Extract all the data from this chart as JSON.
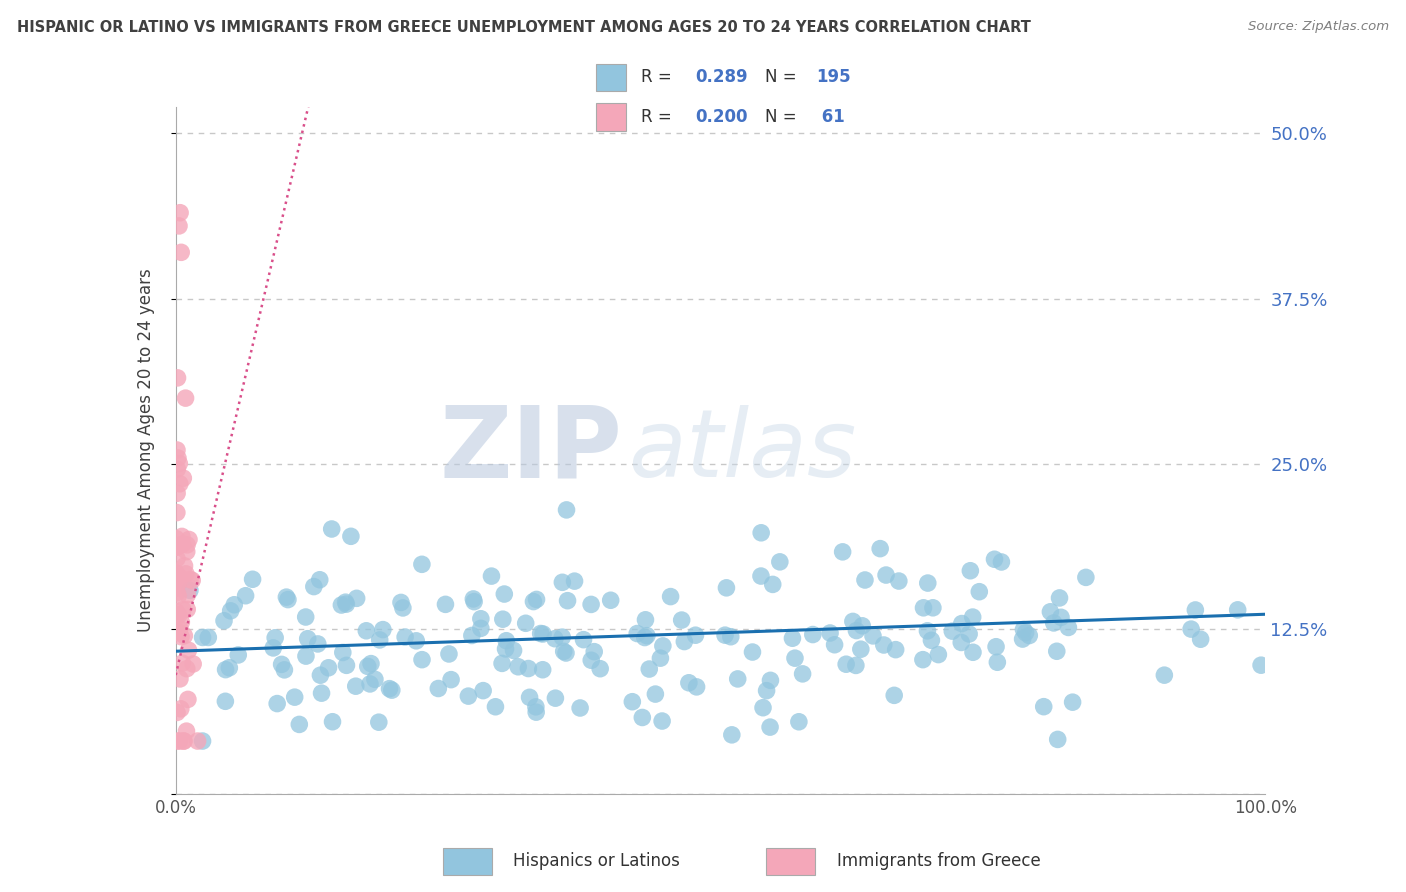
{
  "title": "HISPANIC OR LATINO VS IMMIGRANTS FROM GREECE UNEMPLOYMENT AMONG AGES 20 TO 24 YEARS CORRELATION CHART",
  "source": "Source: ZipAtlas.com",
  "ylabel": "Unemployment Among Ages 20 to 24 years",
  "xlim": [
    0,
    1.0
  ],
  "ylim": [
    0.0,
    0.52
  ],
  "yticks": [
    0.0,
    0.125,
    0.25,
    0.375,
    0.5
  ],
  "yticklabels_right": [
    "",
    "12.5%",
    "25.0%",
    "37.5%",
    "50.0%"
  ],
  "blue_color": "#92c5de",
  "pink_color": "#f4a7b9",
  "blue_line_color": "#1a6faf",
  "pink_line_color": "#d94f8a",
  "R_blue": 0.289,
  "N_blue": 195,
  "R_pink": 0.2,
  "N_pink": 61,
  "legend_label_blue": "Hispanics or Latinos",
  "legend_label_pink": "Immigrants from Greece",
  "watermark_zip": "ZIP",
  "watermark_atlas": "atlas",
  "background_color": "#ffffff",
  "grid_color": "#c8c8c8",
  "tick_color": "#4472c4",
  "title_color": "#404040",
  "source_color": "#808080"
}
